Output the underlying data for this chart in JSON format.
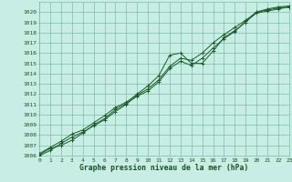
{
  "xlabel": "Graphe pression niveau de la mer (hPa)",
  "ylim": [
    1006,
    1021
  ],
  "xlim": [
    0,
    23
  ],
  "yticks": [
    1006,
    1007,
    1008,
    1009,
    1010,
    1011,
    1012,
    1013,
    1014,
    1015,
    1016,
    1017,
    1018,
    1019,
    1020
  ],
  "xticks": [
    0,
    1,
    2,
    3,
    4,
    5,
    6,
    7,
    8,
    9,
    10,
    11,
    12,
    13,
    14,
    15,
    16,
    17,
    18,
    19,
    20,
    21,
    22,
    23
  ],
  "background_color": "#c8ede4",
  "plot_bg": "#c8ede4",
  "grid_color": "#7abfaa",
  "line_color": "#1a5c28",
  "marker_color": "#1a5c28",
  "label_color": "#1a5020",
  "series": [
    [
      1006.2,
      1006.8,
      1007.4,
      1008.1,
      1008.5,
      1009.2,
      1009.9,
      1010.7,
      1011.2,
      1012.0,
      1012.8,
      1013.8,
      1015.8,
      1016.0,
      1015.0,
      1015.0,
      1016.2,
      1017.5,
      1018.2,
      1019.0,
      1020.0,
      1020.2,
      1020.4,
      1020.5
    ],
    [
      1006.0,
      1006.5,
      1007.2,
      1007.8,
      1008.3,
      1008.9,
      1009.5,
      1010.3,
      1011.0,
      1011.9,
      1012.5,
      1013.4,
      1014.7,
      1015.5,
      1015.3,
      1016.0,
      1017.0,
      1017.8,
      1018.5,
      1019.2,
      1020.0,
      1020.3,
      1020.5,
      1020.6
    ],
    [
      1006.1,
      1006.7,
      1007.0,
      1007.5,
      1008.2,
      1009.0,
      1009.6,
      1010.5,
      1011.1,
      1011.8,
      1012.3,
      1013.2,
      1014.5,
      1015.2,
      1014.8,
      1015.5,
      1016.5,
      1017.4,
      1018.1,
      1019.1,
      1019.9,
      1020.1,
      1020.3,
      1020.5
    ]
  ],
  "marker": "+",
  "markersize": 3,
  "linewidth": 0.7,
  "tick_fontsize": 4.5,
  "label_fontsize": 5.8
}
